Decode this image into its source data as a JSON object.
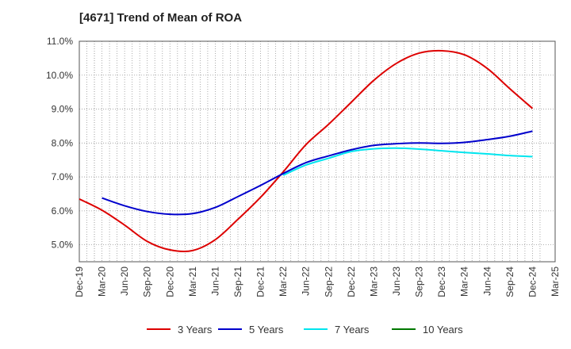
{
  "chart_data": {
    "type": "line",
    "title": "[4671]  Trend of Mean of ROA",
    "xlabel": "",
    "ylabel": "",
    "ylim": [
      4.5,
      11.0
    ],
    "y_ticks": [
      5.0,
      6.0,
      7.0,
      8.0,
      9.0,
      10.0,
      11.0
    ],
    "y_tick_labels": [
      "5.0%",
      "6.0%",
      "7.0%",
      "8.0%",
      "9.0%",
      "10.0%",
      "11.0%"
    ],
    "categories": [
      "Dec-19",
      "Mar-20",
      "Jun-20",
      "Sep-20",
      "Dec-20",
      "Mar-21",
      "Jun-21",
      "Sep-21",
      "Dec-21",
      "Mar-22",
      "Jun-22",
      "Sep-22",
      "Dec-22",
      "Mar-23",
      "Jun-23",
      "Sep-23",
      "Dec-23",
      "Mar-24",
      "Jun-24",
      "Sep-24",
      "Dec-24",
      "Mar-25"
    ],
    "grid": true,
    "legend_position": "bottom",
    "series": [
      {
        "name": "3 Years",
        "color": "#dd0000",
        "values": [
          6.35,
          6.02,
          5.58,
          5.1,
          4.85,
          4.83,
          5.15,
          5.75,
          6.4,
          7.15,
          7.95,
          8.55,
          9.2,
          9.85,
          10.35,
          10.65,
          10.72,
          10.6,
          10.2,
          9.6,
          9.02,
          null
        ]
      },
      {
        "name": "5 Years",
        "color": "#0000cc",
        "values": [
          null,
          6.38,
          6.15,
          5.98,
          5.9,
          5.92,
          6.1,
          6.42,
          6.75,
          7.1,
          7.42,
          7.62,
          7.8,
          7.93,
          7.98,
          8.0,
          7.99,
          8.02,
          8.1,
          8.2,
          8.35,
          null
        ]
      },
      {
        "name": "7 Years",
        "color": "#00e5ee",
        "values": [
          null,
          null,
          null,
          null,
          null,
          null,
          null,
          null,
          null,
          7.05,
          7.35,
          7.55,
          7.75,
          7.83,
          7.85,
          7.82,
          7.77,
          7.72,
          7.68,
          7.63,
          7.6,
          null
        ]
      },
      {
        "name": "10 Years",
        "color": "#007700",
        "values": [
          null,
          null,
          null,
          null,
          null,
          null,
          null,
          null,
          null,
          null,
          null,
          null,
          null,
          null,
          null,
          null,
          null,
          null,
          null,
          null,
          null,
          null
        ]
      }
    ]
  }
}
